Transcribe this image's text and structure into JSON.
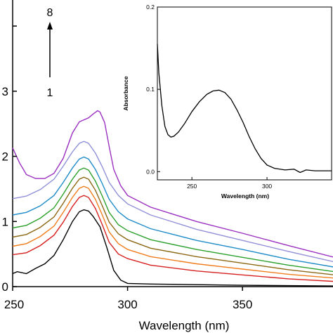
{
  "chart_data": [
    {
      "type": "line",
      "xlabel": "Wavelength (nm)",
      "ylabel": "",
      "xlim": [
        250,
        390
      ],
      "ylim": [
        0,
        0.44
      ],
      "x_ticks": [
        250,
        300,
        350
      ],
      "y_ticks": [
        0,
        0.1,
        0.2,
        0.3,
        0.4
      ],
      "y_tick_labels": [
        "0",
        "1",
        "2",
        "3",
        ""
      ],
      "annotations": {
        "top_label": "8",
        "bottom_label": "1",
        "arrow": "up"
      },
      "series": [
        {
          "color": "#000000",
          "points": [
            [
              250,
              0.02
            ],
            [
              252,
              0.023
            ],
            [
              256,
              0.02
            ],
            [
              260,
              0.028
            ],
            [
              264,
              0.035
            ],
            [
              268,
              0.048
            ],
            [
              272,
              0.072
            ],
            [
              276,
              0.1
            ],
            [
              279,
              0.115
            ],
            [
              281,
              0.118
            ],
            [
              283,
              0.116
            ],
            [
              285,
              0.108
            ],
            [
              288,
              0.092
            ],
            [
              291,
              0.06
            ],
            [
              294,
              0.025
            ],
            [
              297,
              0.01
            ],
            [
              300,
              0.005
            ],
            [
              310,
              0.004
            ],
            [
              330,
              0.003
            ],
            [
              350,
              0.002
            ],
            [
              390,
              0.001
            ]
          ]
        },
        {
          "color": "#d62020",
          "points": [
            [
              250,
              0.049
            ],
            [
              256,
              0.052
            ],
            [
              262,
              0.063
            ],
            [
              268,
              0.079
            ],
            [
              272,
              0.099
            ],
            [
              276,
              0.123
            ],
            [
              279,
              0.137
            ],
            [
              281,
              0.14
            ],
            [
              283,
              0.137
            ],
            [
              286,
              0.12
            ],
            [
              289,
              0.095
            ],
            [
              292,
              0.068
            ],
            [
              296,
              0.05
            ],
            [
              300,
              0.043
            ],
            [
              310,
              0.033
            ],
            [
              330,
              0.024
            ],
            [
              350,
              0.018
            ],
            [
              370,
              0.012
            ],
            [
              390,
              0.008
            ]
          ]
        },
        {
          "color": "#f07d1e",
          "points": [
            [
              250,
              0.062
            ],
            [
              256,
              0.066
            ],
            [
              262,
              0.077
            ],
            [
              268,
              0.093
            ],
            [
              272,
              0.114
            ],
            [
              276,
              0.137
            ],
            [
              279,
              0.151
            ],
            [
              281,
              0.154
            ],
            [
              283,
              0.151
            ],
            [
              286,
              0.134
            ],
            [
              289,
              0.11
            ],
            [
              292,
              0.084
            ],
            [
              296,
              0.066
            ],
            [
              300,
              0.057
            ],
            [
              310,
              0.046
            ],
            [
              330,
              0.035
            ],
            [
              350,
              0.027
            ],
            [
              370,
              0.019
            ],
            [
              390,
              0.013
            ]
          ]
        },
        {
          "color": "#8c6814",
          "points": [
            [
              250,
              0.076
            ],
            [
              256,
              0.08
            ],
            [
              262,
              0.091
            ],
            [
              268,
              0.107
            ],
            [
              272,
              0.128
            ],
            [
              276,
              0.151
            ],
            [
              279,
              0.165
            ],
            [
              281,
              0.168
            ],
            [
              283,
              0.165
            ],
            [
              286,
              0.148
            ],
            [
              289,
              0.124
            ],
            [
              292,
              0.099
            ],
            [
              296,
              0.081
            ],
            [
              300,
              0.072
            ],
            [
              310,
              0.059
            ],
            [
              330,
              0.046
            ],
            [
              350,
              0.036
            ],
            [
              370,
              0.026
            ],
            [
              390,
              0.018
            ]
          ]
        },
        {
          "color": "#2ca02c",
          "points": [
            [
              250,
              0.09
            ],
            [
              256,
              0.094
            ],
            [
              262,
              0.105
            ],
            [
              268,
              0.121
            ],
            [
              272,
              0.142
            ],
            [
              276,
              0.165
            ],
            [
              279,
              0.179
            ],
            [
              281,
              0.182
            ],
            [
              283,
              0.179
            ],
            [
              286,
              0.162
            ],
            [
              289,
              0.139
            ],
            [
              292,
              0.114
            ],
            [
              296,
              0.095
            ],
            [
              300,
              0.086
            ],
            [
              310,
              0.072
            ],
            [
              330,
              0.057
            ],
            [
              350,
              0.045
            ],
            [
              370,
              0.033
            ],
            [
              390,
              0.023
            ]
          ]
        },
        {
          "color": "#1f8cc8",
          "points": [
            [
              250,
              0.11
            ],
            [
              256,
              0.114
            ],
            [
              262,
              0.124
            ],
            [
              268,
              0.14
            ],
            [
              272,
              0.16
            ],
            [
              276,
              0.182
            ],
            [
              279,
              0.196
            ],
            [
              281,
              0.199
            ],
            [
              283,
              0.196
            ],
            [
              286,
              0.18
            ],
            [
              289,
              0.158
            ],
            [
              292,
              0.134
            ],
            [
              296,
              0.115
            ],
            [
              300,
              0.104
            ],
            [
              310,
              0.089
            ],
            [
              330,
              0.071
            ],
            [
              350,
              0.057
            ],
            [
              370,
              0.042
            ],
            [
              390,
              0.03
            ]
          ]
        },
        {
          "color": "#9090d8",
          "points": [
            [
              250,
              0.135
            ],
            [
              256,
              0.139
            ],
            [
              262,
              0.149
            ],
            [
              268,
              0.165
            ],
            [
              272,
              0.185
            ],
            [
              276,
              0.207
            ],
            [
              279,
              0.22
            ],
            [
              281,
              0.223
            ],
            [
              283,
              0.22
            ],
            [
              286,
              0.205
            ],
            [
              289,
              0.184
            ],
            [
              292,
              0.16
            ],
            [
              296,
              0.14
            ],
            [
              300,
              0.127
            ],
            [
              310,
              0.11
            ],
            [
              330,
              0.088
            ],
            [
              350,
              0.071
            ],
            [
              370,
              0.054
            ],
            [
              390,
              0.038
            ]
          ]
        },
        {
          "color": "#9a2fc0",
          "points": [
            [
              250,
              0.213
            ],
            [
              253,
              0.19
            ],
            [
              256,
              0.172
            ],
            [
              260,
              0.166
            ],
            [
              264,
              0.166
            ],
            [
              268,
              0.174
            ],
            [
              272,
              0.197
            ],
            [
              276,
              0.236
            ],
            [
              279,
              0.253
            ],
            [
              281,
              0.256
            ],
            [
              283,
              0.259
            ],
            [
              285,
              0.265
            ],
            [
              287,
              0.27
            ],
            [
              288,
              0.268
            ],
            [
              290,
              0.252
            ],
            [
              292,
              0.215
            ],
            [
              294,
              0.18
            ],
            [
              297,
              0.155
            ],
            [
              300,
              0.14
            ],
            [
              310,
              0.122
            ],
            [
              330,
              0.1
            ],
            [
              350,
              0.082
            ],
            [
              370,
              0.063
            ],
            [
              390,
              0.045
            ]
          ]
        }
      ]
    },
    {
      "type": "line",
      "xlabel": "Wavelength (nm)",
      "ylabel": "Absorbance",
      "xlim": [
        227,
        343
      ],
      "ylim": [
        -0.01,
        0.2
      ],
      "x_ticks": [
        250,
        300
      ],
      "y_ticks": [
        0.0,
        0.1,
        0.2
      ],
      "x_tick_labels": [
        "250",
        "300"
      ],
      "y_tick_labels": [
        "0.0",
        "0.1",
        "0.2"
      ],
      "series": [
        {
          "color": "#000000",
          "points": [
            [
              227,
              0.155
            ],
            [
              228,
              0.12
            ],
            [
              230,
              0.08
            ],
            [
              232,
              0.055
            ],
            [
              234,
              0.045
            ],
            [
              236,
              0.042
            ],
            [
              238,
              0.043
            ],
            [
              241,
              0.048
            ],
            [
              245,
              0.058
            ],
            [
              250,
              0.073
            ],
            [
              255,
              0.085
            ],
            [
              260,
              0.094
            ],
            [
              264,
              0.098
            ],
            [
              268,
              0.099
            ],
            [
              272,
              0.096
            ],
            [
              276,
              0.088
            ],
            [
              280,
              0.075
            ],
            [
              284,
              0.06
            ],
            [
              288,
              0.043
            ],
            [
              292,
              0.028
            ],
            [
              296,
              0.016
            ],
            [
              300,
              0.008
            ],
            [
              305,
              0.004
            ],
            [
              312,
              0.002
            ],
            [
              318,
              0.003
            ],
            [
              322,
              -0.001
            ],
            [
              326,
              0.002
            ],
            [
              332,
              0.001
            ],
            [
              343,
              0.001
            ]
          ]
        }
      ]
    }
  ]
}
